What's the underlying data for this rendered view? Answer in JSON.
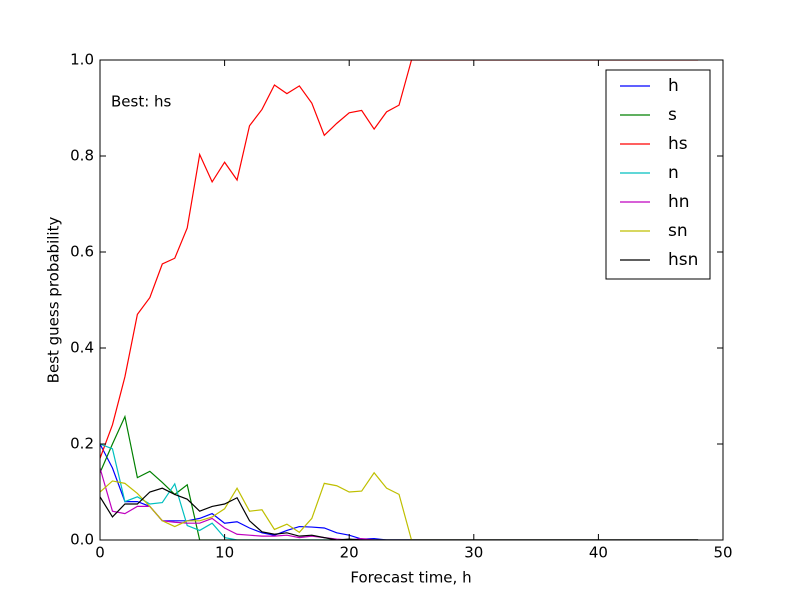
{
  "chart_data": {
    "type": "line",
    "xlabel": "Forecast time, h",
    "ylabel": "Best guess probability",
    "annotation": "Best: hs",
    "legend": "upper right",
    "xlim": [
      0,
      50
    ],
    "ylim": [
      0,
      1
    ],
    "xticks": [
      0,
      10,
      20,
      30,
      40,
      50
    ],
    "yticks": [
      {
        "value": 0,
        "label": "0.0"
      },
      0.2,
      0.4,
      0.6,
      0.8,
      {
        "value": 1,
        "label": "1.0"
      }
    ],
    "x": [
      0,
      1,
      2,
      3,
      4,
      5,
      6,
      7,
      8,
      9,
      10,
      11,
      12,
      13,
      14,
      15,
      16,
      17,
      18,
      19,
      20,
      21,
      22,
      23,
      24,
      25,
      26,
      27,
      28,
      29,
      30,
      31,
      32,
      33,
      34,
      35,
      36,
      37,
      38,
      39,
      40,
      41,
      42,
      43,
      44,
      45,
      46,
      47,
      48
    ],
    "series": [
      {
        "name": "h",
        "color": "#0000ff",
        "values": [
          0.2,
          0.15,
          0.08,
          0.08,
          0.07,
          0.04,
          0.04,
          0.04,
          0.045,
          0.055,
          0.035,
          0.038,
          0.025,
          0.015,
          0.01,
          0.02,
          0.028,
          0.027,
          0.025,
          0.015,
          0.01,
          0.002,
          0.003,
          0,
          0,
          0,
          0,
          0,
          0,
          0,
          0,
          0,
          0,
          0,
          0,
          0,
          0,
          0,
          0,
          0,
          0,
          0,
          0,
          0,
          0,
          0,
          0,
          0,
          0
        ]
      },
      {
        "name": "s",
        "color": "#008000",
        "values": [
          0.14,
          0.2,
          0.257,
          0.13,
          0.143,
          0.12,
          0.095,
          0.115,
          0,
          0,
          0,
          0,
          0,
          0,
          0,
          0,
          0,
          0,
          0,
          0,
          0,
          0,
          0,
          0,
          0,
          0,
          0,
          0,
          0,
          0,
          0,
          0,
          0,
          0,
          0,
          0,
          0,
          0,
          0,
          0,
          0,
          0,
          0,
          0,
          0,
          0,
          0,
          0,
          0
        ]
      },
      {
        "name": "hs",
        "color": "#ff0000",
        "values": [
          0.17,
          0.24,
          0.34,
          0.47,
          0.505,
          0.575,
          0.587,
          0.65,
          0.803,
          0.746,
          0.787,
          0.75,
          0.863,
          0.897,
          0.948,
          0.93,
          0.946,
          0.91,
          0.843,
          0.868,
          0.89,
          0.895,
          0.856,
          0.892,
          0.906,
          1,
          1,
          1,
          1,
          1,
          1,
          1,
          1,
          1,
          1,
          1,
          1,
          1,
          1,
          1,
          1,
          1,
          1,
          1,
          1,
          1,
          1,
          1,
          1
        ]
      },
      {
        "name": "n",
        "color": "#00bfbf",
        "values": [
          0.2,
          0.19,
          0.08,
          0.09,
          0.075,
          0.078,
          0.117,
          0.03,
          0.02,
          0.035,
          0.005,
          0,
          0,
          0,
          0,
          0,
          0,
          0,
          0,
          0,
          0,
          0,
          0,
          0,
          0,
          0,
          0,
          0,
          0,
          0,
          0,
          0,
          0,
          0,
          0,
          0,
          0,
          0,
          0,
          0,
          0,
          0,
          0,
          0,
          0,
          0,
          0,
          0,
          0
        ]
      },
      {
        "name": "hn",
        "color": "#bf00bf",
        "values": [
          0.15,
          0.06,
          0.055,
          0.07,
          0.07,
          0.04,
          0.037,
          0.035,
          0.035,
          0.045,
          0.025,
          0.012,
          0.01,
          0.008,
          0.008,
          0.01,
          0.005,
          0.008,
          0.005,
          0.002,
          0,
          0.003,
          0,
          0,
          0,
          0,
          0,
          0,
          0,
          0,
          0,
          0,
          0,
          0,
          0,
          0,
          0,
          0,
          0,
          0,
          0,
          0,
          0,
          0,
          0,
          0,
          0,
          0,
          0
        ]
      },
      {
        "name": "sn",
        "color": "#bfbf00",
        "values": [
          0.1,
          0.123,
          0.118,
          0.097,
          0.07,
          0.04,
          0.028,
          0.04,
          0.04,
          0.048,
          0.065,
          0.108,
          0.06,
          0.063,
          0.022,
          0.033,
          0.016,
          0.045,
          0.118,
          0.113,
          0.1,
          0.102,
          0.14,
          0.108,
          0.095,
          0,
          0,
          0,
          0,
          0,
          0,
          0,
          0,
          0,
          0,
          0,
          0,
          0,
          0,
          0,
          0,
          0,
          0,
          0,
          0,
          0,
          0,
          0,
          0
        ]
      },
      {
        "name": "hsn",
        "color": "#000000",
        "values": [
          0.09,
          0.048,
          0.075,
          0.075,
          0.1,
          0.108,
          0.095,
          0.085,
          0.06,
          0.07,
          0.075,
          0.088,
          0.04,
          0.017,
          0.012,
          0.015,
          0.008,
          0.01,
          0.005,
          0,
          0.002,
          0,
          0,
          0,
          0,
          0,
          0,
          0,
          0,
          0,
          0,
          0,
          0,
          0,
          0,
          0,
          0,
          0,
          0,
          0,
          0,
          0,
          0,
          0,
          0,
          0,
          0,
          0,
          0
        ]
      }
    ]
  }
}
